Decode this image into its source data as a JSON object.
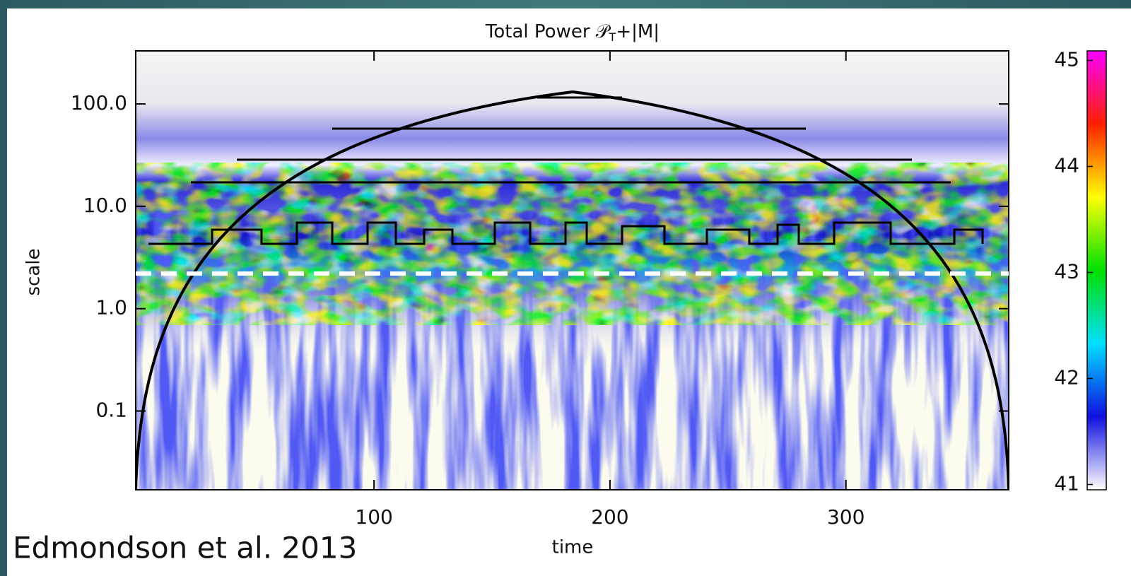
{
  "chart_data": {
    "type": "heatmap",
    "title": {
      "text": "Total Power 𝒫",
      "subscript": "T",
      "suffix": "+|M|"
    },
    "xlabel": "time",
    "ylabel": "scale",
    "annotation": "Edmondson et al. 2013",
    "xlim": [
      -1,
      369
    ],
    "xticks": [
      100,
      200,
      300
    ],
    "ylim": [
      0.017,
      330
    ],
    "yscale": "log",
    "yticks": [
      {
        "value": 0.1,
        "label": "0.1"
      },
      {
        "value": 1,
        "label": "1.0"
      },
      {
        "value": 10,
        "label": "10.0"
      },
      {
        "value": 100,
        "label": "100.0"
      }
    ],
    "colorbar": {
      "lim": [
        40.95,
        45.09
      ],
      "ticks": [
        41,
        42,
        43,
        44,
        45
      ],
      "colors": [
        "#ffffff",
        "#1010e0",
        "#00e0ff",
        "#00e000",
        "#ffff00",
        "#ff2000",
        "#ff00ff"
      ]
    },
    "reference_line": {
      "value": 2.2,
      "color": "#ffffff",
      "style": "dashed"
    }
  }
}
